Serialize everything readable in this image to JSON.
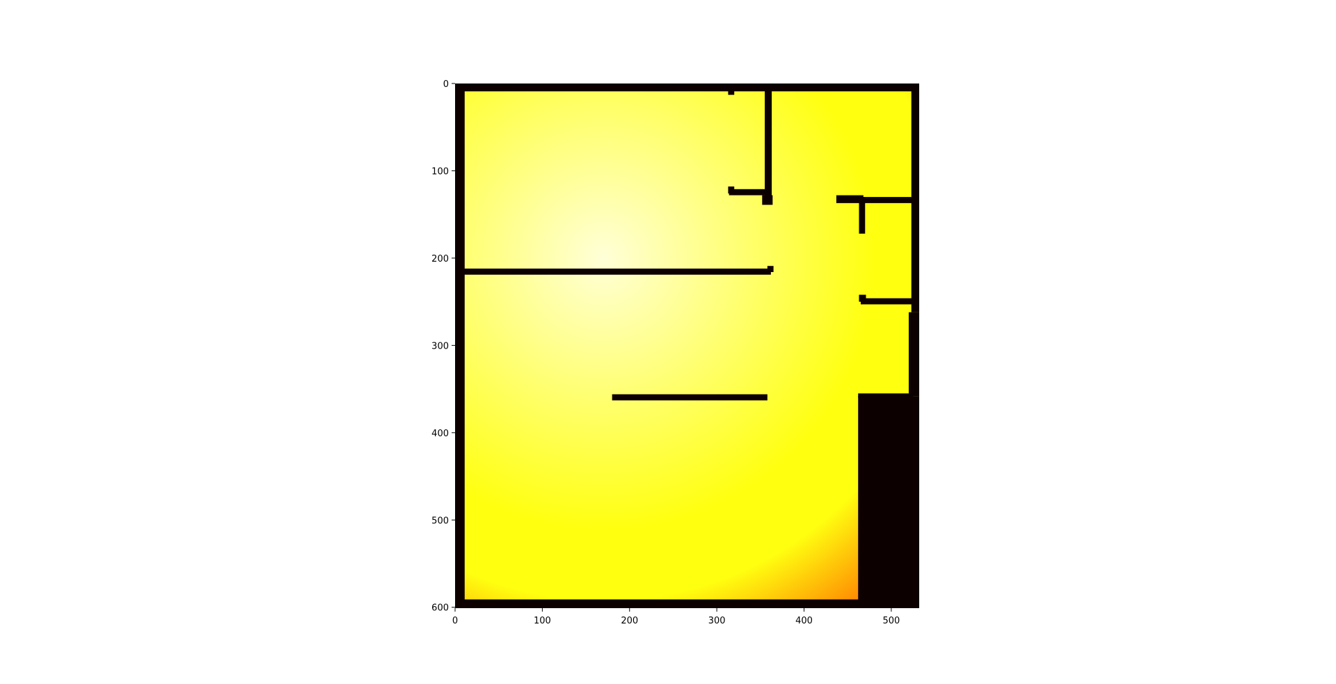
{
  "chart_data": {
    "type": "heatmap",
    "title": "",
    "xlabel": "",
    "ylabel": "",
    "xlim": [
      0,
      532
    ],
    "ylim": [
      601,
      0
    ],
    "x_ticks": [
      0,
      100,
      200,
      300,
      400,
      500
    ],
    "y_ticks": [
      0,
      100,
      200,
      300,
      400,
      500,
      600
    ],
    "x_tick_labels": [
      "0",
      "100",
      "200",
      "300",
      "400",
      "500"
    ],
    "y_tick_labels": [
      "0",
      "100",
      "200",
      "300",
      "400",
      "500",
      "600"
    ],
    "colormap": "hot",
    "colors": {
      "wall": "#0d0000",
      "peak": "#ffffd8",
      "mid": "#ffff10",
      "low": "#ff7a00"
    },
    "field": {
      "peak_x": 170,
      "peak_y": 200
    },
    "walls": [
      {
        "x": [
          0,
          532
        ],
        "y": [
          0,
          9
        ]
      },
      {
        "x": [
          0,
          11
        ],
        "y": [
          0,
          601
        ]
      },
      {
        "x": [
          0,
          532
        ],
        "y": [
          591,
          601
        ]
      },
      {
        "x": [
          523,
          532
        ],
        "y": [
          0,
          262
        ]
      },
      {
        "x": [
          520,
          532
        ],
        "y": [
          262,
          358
        ]
      },
      {
        "x": [
          462,
          532
        ],
        "y": [
          358,
          601
        ]
      },
      {
        "x": [
          355,
          363
        ],
        "y": [
          5,
          135
        ]
      },
      {
        "x": [
          352,
          364
        ],
        "y": [
          128,
          139
        ]
      },
      {
        "x": [
          314,
          362
        ],
        "y": [
          121,
          128
        ]
      },
      {
        "x": [
          313,
          320
        ],
        "y": [
          118,
          126
        ]
      },
      {
        "x": [
          313,
          320
        ],
        "y": [
          4,
          13
        ]
      },
      {
        "x": [
          8,
          362
        ],
        "y": [
          212,
          219
        ]
      },
      {
        "x": [
          358,
          365
        ],
        "y": [
          209,
          216
        ]
      },
      {
        "x": [
          437,
          468
        ],
        "y": [
          128,
          137
        ]
      },
      {
        "x": [
          465,
          525
        ],
        "y": [
          130,
          137
        ]
      },
      {
        "x": [
          463,
          470
        ],
        "y": [
          130,
          172
        ]
      },
      {
        "x": [
          463,
          471
        ],
        "y": [
          242,
          250
        ]
      },
      {
        "x": [
          465,
          525
        ],
        "y": [
          246,
          253
        ]
      },
      {
        "x": [
          180,
          358
        ],
        "y": [
          356,
          363
        ]
      },
      {
        "x": [
          462,
          525
        ],
        "y": [
          355,
          360
        ]
      }
    ]
  }
}
